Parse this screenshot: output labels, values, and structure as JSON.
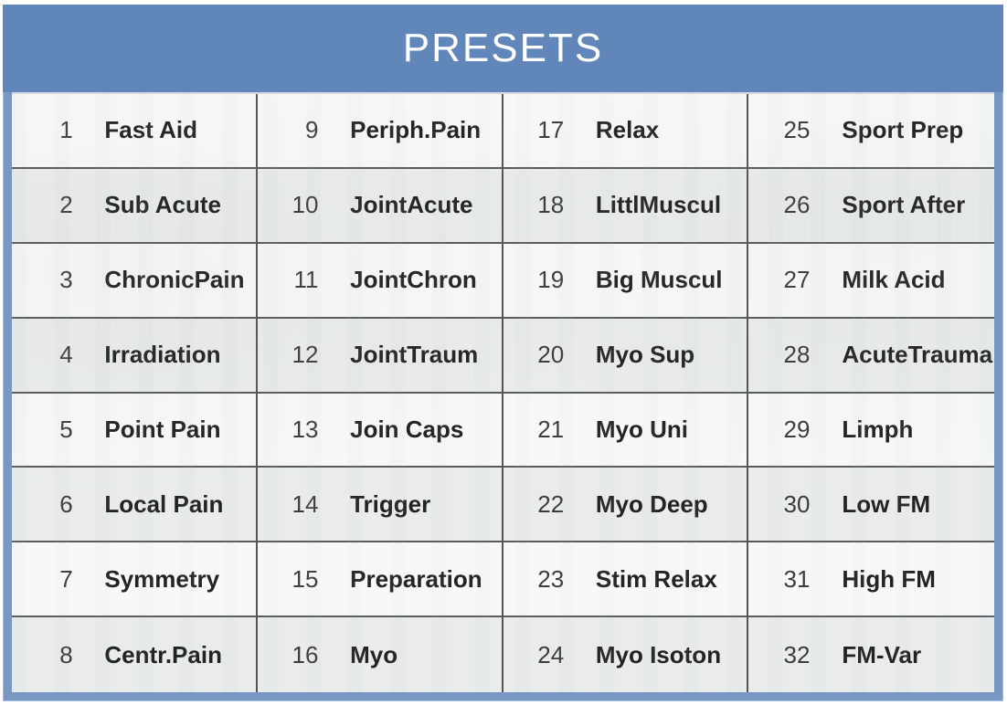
{
  "header": {
    "title": "PRESETS"
  },
  "presets": [
    {
      "num": "1",
      "label": "Fast Aid"
    },
    {
      "num": "2",
      "label": "Sub Acute"
    },
    {
      "num": "3",
      "label": "ChronicPain"
    },
    {
      "num": "4",
      "label": "Irradiation"
    },
    {
      "num": "5",
      "label": "Point Pain"
    },
    {
      "num": "6",
      "label": "Local Pain"
    },
    {
      "num": "7",
      "label": "Symmetry"
    },
    {
      "num": "8",
      "label": "Centr.Pain"
    },
    {
      "num": "9",
      "label": "Periph.Pain"
    },
    {
      "num": "10",
      "label": "JointAcute"
    },
    {
      "num": "11",
      "label": "JointChron"
    },
    {
      "num": "12",
      "label": "JointTraum"
    },
    {
      "num": "13",
      "label": "Join Caps"
    },
    {
      "num": "14",
      "label": "Trigger"
    },
    {
      "num": "15",
      "label": "Preparation"
    },
    {
      "num": "16",
      "label": "Myo"
    },
    {
      "num": "17",
      "label": "Relax"
    },
    {
      "num": "18",
      "label": "LittlMuscul"
    },
    {
      "num": "19",
      "label": "Big Muscul"
    },
    {
      "num": "20",
      "label": "Myo Sup"
    },
    {
      "num": "21",
      "label": "Myo Uni"
    },
    {
      "num": "22",
      "label": "Myo Deep"
    },
    {
      "num": "23",
      "label": "Stim Relax"
    },
    {
      "num": "24",
      "label": "Myo Isoton"
    },
    {
      "num": "25",
      "label": "Sport Prep"
    },
    {
      "num": "26",
      "label": "Sport After"
    },
    {
      "num": "27",
      "label": "Milk Acid"
    },
    {
      "num": "28",
      "label": "AcuteTrauma"
    },
    {
      "num": "29",
      "label": "Limph"
    },
    {
      "num": "30",
      "label": "Low FM"
    },
    {
      "num": "31",
      "label": "High FM"
    },
    {
      "num": "32",
      "label": "FM-Var"
    }
  ],
  "layout": {
    "columns": 4,
    "rows_per_column": 8,
    "order": "column-major"
  },
  "colors": {
    "header_bg": "#6187ba",
    "frame": "#7897c1",
    "row_odd": "#f8f8f7",
    "row_even": "#e9eceb",
    "grid_line": "#5a5a5a",
    "title_text": "#ffffff",
    "preset_text": "#232323",
    "number_text": "#3c3c3c"
  }
}
